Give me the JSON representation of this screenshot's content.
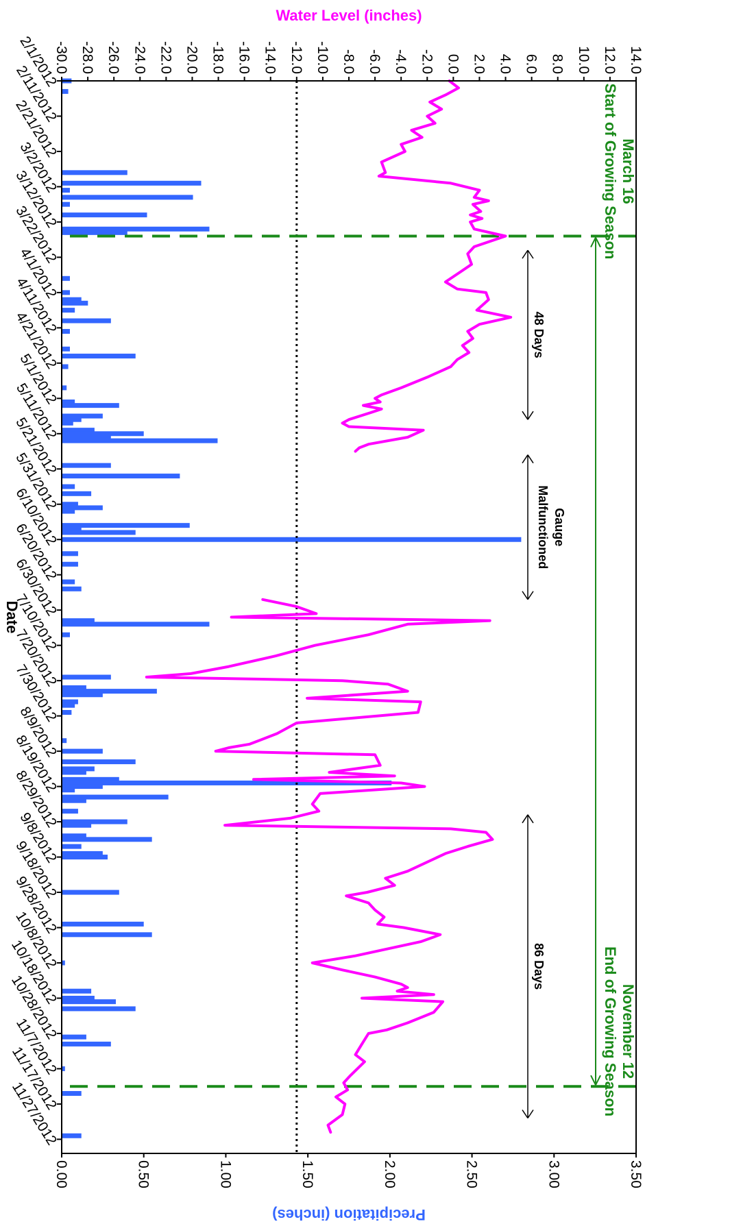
{
  "chart_data": {
    "type": "line",
    "xlabel": "Date",
    "ylabel_left": "Water Level (inches)",
    "ylabel_right": "Precipitation (inches)",
    "x_range": [
      "2012-02-01",
      "2012-12-01"
    ],
    "x_tick_labels": [
      "2/1/2012",
      "2/11/2012",
      "2/21/2012",
      "3/2/2012",
      "3/12/2012",
      "3/22/2012",
      "4/1/2012",
      "4/11/2012",
      "4/21/2012",
      "5/1/2012",
      "5/11/2012",
      "5/21/2012",
      "5/31/2012",
      "6/10/2012",
      "6/20/2012",
      "6/30/2012",
      "7/10/2012",
      "7/20/2012",
      "7/30/2012",
      "8/9/2012",
      "8/19/2012",
      "8/29/2012",
      "9/8/2012",
      "9/18/2012",
      "9/28/2012",
      "10/8/2012",
      "10/18/2012",
      "10/28/2012",
      "11/7/2012",
      "11/17/2012",
      "11/27/2012"
    ],
    "water_level_axis": {
      "ylim": [
        -30,
        14
      ],
      "tick_labels": [
        "14.0",
        "12.0",
        "10.0",
        "8.0",
        "6.0",
        "4.0",
        "2.0",
        "0.0",
        "-2.0",
        "-4.0",
        "-6.0",
        "-8.0",
        "-10.0",
        "-12.0",
        "-14.0",
        "-16.0",
        "-18.0",
        "-20.0",
        "-22.0",
        "-24.0",
        "-26.0",
        "-28.0",
        "-30.0"
      ]
    },
    "precip_axis": {
      "ylim": [
        0,
        3.5
      ],
      "tick_labels": [
        "3.50",
        "3.00",
        "2.50",
        "2.00",
        "1.50",
        "1.00",
        "0.50",
        "0.00"
      ]
    },
    "reference_line": {
      "y": -12,
      "style": "dotted"
    },
    "growing_season": {
      "start": "2012-03-16",
      "end": "2012-11-12",
      "start_label": "March 16\nStart of Growing Season",
      "end_label": "November 12\nEnd of Growing Season"
    },
    "annotations": [
      {
        "text": "48 Days",
        "x_start": "2012-03-20",
        "x_end": "2012-05-07"
      },
      {
        "text": "Gauge\nMalfunctioned",
        "x_start": "2012-05-17",
        "x_end": "2012-06-27"
      },
      {
        "text": "86 Days",
        "x_start": "2012-08-27",
        "x_end": "2012-11-21"
      }
    ],
    "series": [
      {
        "name": "Water Level",
        "axis": "left",
        "color": "#ff00ff",
        "segments": [
          [
            [
              "2012-02-01",
              -0.3
            ],
            [
              "2012-02-03",
              0.4
            ],
            [
              "2012-02-05",
              -0.6
            ],
            [
              "2012-02-07",
              -1.8
            ],
            [
              "2012-02-09",
              -0.9
            ],
            [
              "2012-02-11",
              -2.0
            ],
            [
              "2012-02-13",
              -1.4
            ],
            [
              "2012-02-15",
              -3.2
            ],
            [
              "2012-02-17",
              -2.4
            ],
            [
              "2012-02-19",
              -4.0
            ],
            [
              "2012-02-21",
              -3.7
            ],
            [
              "2012-02-24",
              -5.5
            ],
            [
              "2012-02-27",
              -5.2
            ],
            [
              "2012-02-28",
              -5.7
            ],
            [
              "2012-03-01",
              -0.2
            ],
            [
              "2012-03-03",
              2.0
            ],
            [
              "2012-03-05",
              1.6
            ],
            [
              "2012-03-06",
              2.7
            ],
            [
              "2012-03-07",
              1.5
            ],
            [
              "2012-03-09",
              2.1
            ],
            [
              "2012-03-10",
              1.3
            ],
            [
              "2012-03-11",
              2.2
            ],
            [
              "2012-03-12",
              1.3
            ],
            [
              "2012-03-14",
              1.6
            ],
            [
              "2012-03-16",
              4.0
            ],
            [
              "2012-03-19",
              1.6
            ],
            [
              "2012-03-21",
              1.1
            ],
            [
              "2012-03-24",
              1.4
            ],
            [
              "2012-03-26",
              0.6
            ],
            [
              "2012-03-29",
              -0.6
            ],
            [
              "2012-03-31",
              0.3
            ],
            [
              "2012-04-01",
              2.5
            ],
            [
              "2012-04-03",
              2.7
            ],
            [
              "2012-04-06",
              1.8
            ],
            [
              "2012-04-08",
              4.4
            ],
            [
              "2012-04-10",
              2.0
            ],
            [
              "2012-04-12",
              1.1
            ],
            [
              "2012-04-14",
              1.5
            ],
            [
              "2012-04-16",
              0.7
            ],
            [
              "2012-04-18",
              1.2
            ],
            [
              "2012-04-20",
              0.3
            ],
            [
              "2012-04-22",
              -0.2
            ],
            [
              "2012-04-25",
              -2.0
            ],
            [
              "2012-04-28",
              -4.0
            ],
            [
              "2012-04-30",
              -5.5
            ],
            [
              "2012-05-01",
              -6.0
            ],
            [
              "2012-05-02",
              -5.6
            ],
            [
              "2012-05-03",
              -6.9
            ],
            [
              "2012-05-04",
              -5.5
            ],
            [
              "2012-05-05",
              -6.3
            ],
            [
              "2012-05-07",
              -8.0
            ],
            [
              "2012-05-08",
              -8.5
            ],
            [
              "2012-05-09",
              -8.0
            ],
            [
              "2012-05-10",
              -2.3
            ],
            [
              "2012-05-12",
              -3.5
            ],
            [
              "2012-05-14",
              -6.5
            ],
            [
              "2012-05-15",
              -7.2
            ],
            [
              "2012-05-16",
              -7.5
            ]
          ],
          [
            [
              "2012-06-27",
              -14.6
            ],
            [
              "2012-06-29",
              -12.0
            ],
            [
              "2012-07-01",
              -10.5
            ],
            [
              "2012-07-02",
              -17.0
            ],
            [
              "2012-07-03",
              2.8
            ],
            [
              "2012-07-04",
              -3.5
            ],
            [
              "2012-07-07",
              -6.5
            ],
            [
              "2012-07-10",
              -10.6
            ],
            [
              "2012-07-13",
              -13.6
            ],
            [
              "2012-07-16",
              -17.2
            ],
            [
              "2012-07-18",
              -20.1
            ],
            [
              "2012-07-19",
              -23.5
            ],
            [
              "2012-07-20",
              -8.5
            ],
            [
              "2012-07-21",
              -5.0
            ],
            [
              "2012-07-23",
              -3.5
            ],
            [
              "2012-07-25",
              -11.2
            ],
            [
              "2012-07-26",
              -2.5
            ],
            [
              "2012-07-29",
              -2.7
            ],
            [
              "2012-08-01",
              -12.0
            ],
            [
              "2012-08-04",
              -13.5
            ],
            [
              "2012-08-07",
              -15.6
            ],
            [
              "2012-08-08",
              -17.2
            ],
            [
              "2012-08-09",
              -18.2
            ],
            [
              "2012-08-10",
              -6.0
            ],
            [
              "2012-08-13",
              -5.6
            ],
            [
              "2012-08-15",
              -9.5
            ],
            [
              "2012-08-16",
              -4.5
            ],
            [
              "2012-08-17",
              -15.3
            ],
            [
              "2012-08-18",
              -4.0
            ],
            [
              "2012-08-19",
              -2.2
            ],
            [
              "2012-08-21",
              -10.2
            ],
            [
              "2012-08-24",
              -10.8
            ],
            [
              "2012-08-26",
              -10.3
            ],
            [
              "2012-08-28",
              -12.5
            ],
            [
              "2012-08-30",
              -17.5
            ],
            [
              "2012-08-31",
              -0.2
            ],
            [
              "2012-09-01",
              2.5
            ],
            [
              "2012-09-03",
              3.0
            ],
            [
              "2012-09-05",
              1.1
            ],
            [
              "2012-09-07",
              -0.6
            ],
            [
              "2012-09-12",
              -3.5
            ],
            [
              "2012-09-14",
              -5.2
            ],
            [
              "2012-09-16",
              -4.5
            ],
            [
              "2012-09-18",
              -6.6
            ],
            [
              "2012-09-19",
              -8.2
            ],
            [
              "2012-09-21",
              -6.5
            ],
            [
              "2012-09-23",
              -6.0
            ],
            [
              "2012-09-25",
              -5.3
            ],
            [
              "2012-09-27",
              -5.8
            ],
            [
              "2012-09-28",
              -3.8
            ],
            [
              "2012-09-30",
              -1.0
            ],
            [
              "2012-10-02",
              -2.5
            ],
            [
              "2012-10-06",
              -7.5
            ],
            [
              "2012-10-08",
              -10.8
            ],
            [
              "2012-10-10",
              -8.5
            ],
            [
              "2012-10-12",
              -6.0
            ],
            [
              "2012-10-14",
              -4.0
            ],
            [
              "2012-10-15",
              -3.5
            ],
            [
              "2012-10-16",
              -4.3
            ],
            [
              "2012-10-17",
              -1.5
            ],
            [
              "2012-10-18",
              -7.0
            ],
            [
              "2012-10-19",
              -0.8
            ],
            [
              "2012-10-22",
              -1.5
            ],
            [
              "2012-10-25",
              -3.5
            ],
            [
              "2012-10-27",
              -5.1
            ],
            [
              "2012-10-28",
              -6.5
            ],
            [
              "2012-10-31",
              -7.0
            ],
            [
              "2012-11-03",
              -7.5
            ],
            [
              "2012-11-05",
              -6.8
            ],
            [
              "2012-11-09",
              -7.9
            ],
            [
              "2012-11-11",
              -8.4
            ],
            [
              "2012-11-13",
              -8.1
            ],
            [
              "2012-11-15",
              -9.0
            ],
            [
              "2012-11-17",
              -8.3
            ],
            [
              "2012-11-20",
              -8.5
            ],
            [
              "2012-11-23",
              -9.6
            ],
            [
              "2012-11-25",
              -9.4
            ]
          ]
        ]
      },
      {
        "name": "Precipitation",
        "axis": "right",
        "color": "#3366ff",
        "type": "bar",
        "points": [
          [
            "2012-02-01",
            0.06
          ],
          [
            "2012-02-04",
            0.04
          ],
          [
            "2012-02-27",
            0.4
          ],
          [
            "2012-03-01",
            0.85
          ],
          [
            "2012-03-03",
            0.05
          ],
          [
            "2012-03-05",
            0.8
          ],
          [
            "2012-03-07",
            0.05
          ],
          [
            "2012-03-10",
            0.52
          ],
          [
            "2012-03-14",
            0.9
          ],
          [
            "2012-03-15",
            0.4
          ],
          [
            "2012-03-28",
            0.05
          ],
          [
            "2012-04-01",
            0.05
          ],
          [
            "2012-04-03",
            0.12
          ],
          [
            "2012-04-04",
            0.16
          ],
          [
            "2012-04-06",
            0.08
          ],
          [
            "2012-04-09",
            0.3
          ],
          [
            "2012-04-12",
            0.05
          ],
          [
            "2012-04-17",
            0.05
          ],
          [
            "2012-04-19",
            0.45
          ],
          [
            "2012-04-22",
            0.04
          ],
          [
            "2012-04-28",
            0.03
          ],
          [
            "2012-05-02",
            0.08
          ],
          [
            "2012-05-03",
            0.35
          ],
          [
            "2012-05-06",
            0.25
          ],
          [
            "2012-05-07",
            0.12
          ],
          [
            "2012-05-08",
            0.07
          ],
          [
            "2012-05-10",
            0.2
          ],
          [
            "2012-05-11",
            0.5
          ],
          [
            "2012-05-12",
            0.3
          ],
          [
            "2012-05-13",
            0.95
          ],
          [
            "2012-05-20",
            0.3
          ],
          [
            "2012-05-23",
            0.72
          ],
          [
            "2012-05-26",
            0.08
          ],
          [
            "2012-05-28",
            0.18
          ],
          [
            "2012-05-31",
            0.1
          ],
          [
            "2012-06-01",
            0.25
          ],
          [
            "2012-06-02",
            0.08
          ],
          [
            "2012-06-06",
            0.78
          ],
          [
            "2012-06-07",
            0.12
          ],
          [
            "2012-06-08",
            0.45
          ],
          [
            "2012-06-10",
            2.8
          ],
          [
            "2012-06-14",
            0.1
          ],
          [
            "2012-06-17",
            0.1
          ],
          [
            "2012-06-22",
            0.08
          ],
          [
            "2012-06-24",
            0.12
          ],
          [
            "2012-07-03",
            0.2
          ],
          [
            "2012-07-04",
            0.9
          ],
          [
            "2012-07-07",
            0.05
          ],
          [
            "2012-07-19",
            0.3
          ],
          [
            "2012-07-22",
            0.15
          ],
          [
            "2012-07-23",
            0.58
          ],
          [
            "2012-07-24",
            0.25
          ],
          [
            "2012-07-26",
            0.1
          ],
          [
            "2012-07-27",
            0.08
          ],
          [
            "2012-07-29",
            0.06
          ],
          [
            "2012-08-06",
            0.03
          ],
          [
            "2012-08-09",
            0.25
          ],
          [
            "2012-08-12",
            0.45
          ],
          [
            "2012-08-14",
            0.2
          ],
          [
            "2012-08-15",
            0.15
          ],
          [
            "2012-08-17",
            0.35
          ],
          [
            "2012-08-18",
            2.01
          ],
          [
            "2012-08-19",
            0.25
          ],
          [
            "2012-08-20",
            0.08
          ],
          [
            "2012-08-22",
            0.65
          ],
          [
            "2012-08-23",
            0.15
          ],
          [
            "2012-08-26",
            0.1
          ],
          [
            "2012-08-29",
            0.4
          ],
          [
            "2012-08-30",
            0.18
          ],
          [
            "2012-09-02",
            0.15
          ],
          [
            "2012-09-03",
            0.55
          ],
          [
            "2012-09-05",
            0.12
          ],
          [
            "2012-09-07",
            0.25
          ],
          [
            "2012-09-08",
            0.28
          ],
          [
            "2012-09-18",
            0.35
          ],
          [
            "2012-09-27",
            0.5
          ],
          [
            "2012-09-30",
            0.55
          ],
          [
            "2012-10-08",
            0.02
          ],
          [
            "2012-10-16",
            0.18
          ],
          [
            "2012-10-18",
            0.2
          ],
          [
            "2012-10-19",
            0.33
          ],
          [
            "2012-10-21",
            0.45
          ],
          [
            "2012-10-29",
            0.15
          ],
          [
            "2012-10-31",
            0.3
          ],
          [
            "2012-11-07",
            0.02
          ],
          [
            "2012-11-14",
            0.12
          ],
          [
            "2012-11-26",
            0.12
          ]
        ]
      }
    ]
  }
}
